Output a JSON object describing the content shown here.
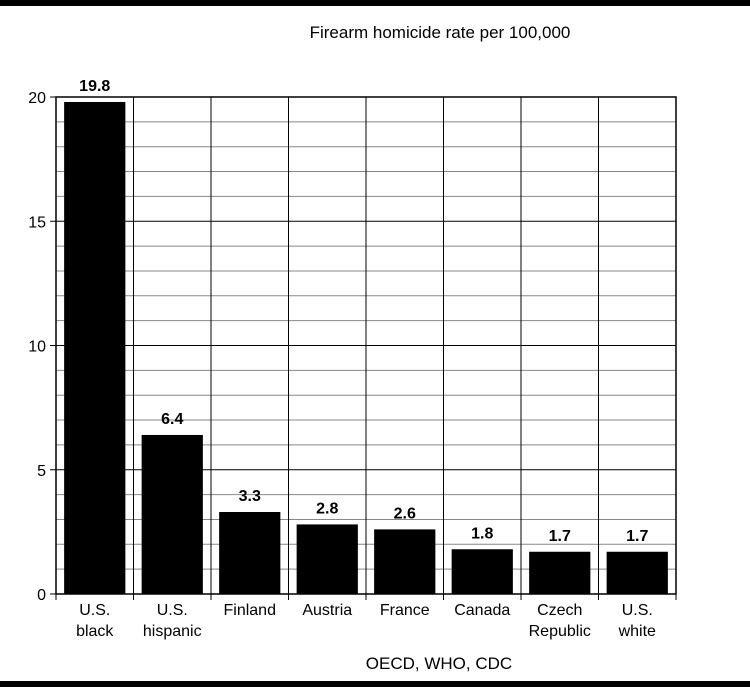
{
  "chart_data": {
    "type": "bar",
    "title": "Firearm homicide rate per 100,000",
    "source": "OECD, WHO, CDC",
    "categories": [
      [
        "U.S.",
        "black"
      ],
      [
        "U.S.",
        "hispanic"
      ],
      [
        "Finland"
      ],
      [
        "Austria"
      ],
      [
        "France"
      ],
      [
        "Canada"
      ],
      [
        "Czech",
        "Republic"
      ],
      [
        "U.S.",
        "white"
      ]
    ],
    "values": [
      19.8,
      6.4,
      3.3,
      2.8,
      2.6,
      1.8,
      1.7,
      1.7
    ],
    "value_labels": [
      "19.8",
      "6.4",
      "3.3",
      "2.8",
      "2.6",
      "1.8",
      "1.7",
      "1.7"
    ],
    "ylim": [
      0,
      20
    ],
    "yticks": [
      0,
      5,
      10,
      15,
      20
    ],
    "ytick_labels": [
      "0",
      "5",
      "10",
      "15",
      "20"
    ],
    "minor_step": 1,
    "grid": true,
    "colors": {
      "bar": "#000000",
      "grid": "#888888",
      "major_grid": "#000000",
      "background": "#ffffff",
      "border": "#000000"
    }
  }
}
